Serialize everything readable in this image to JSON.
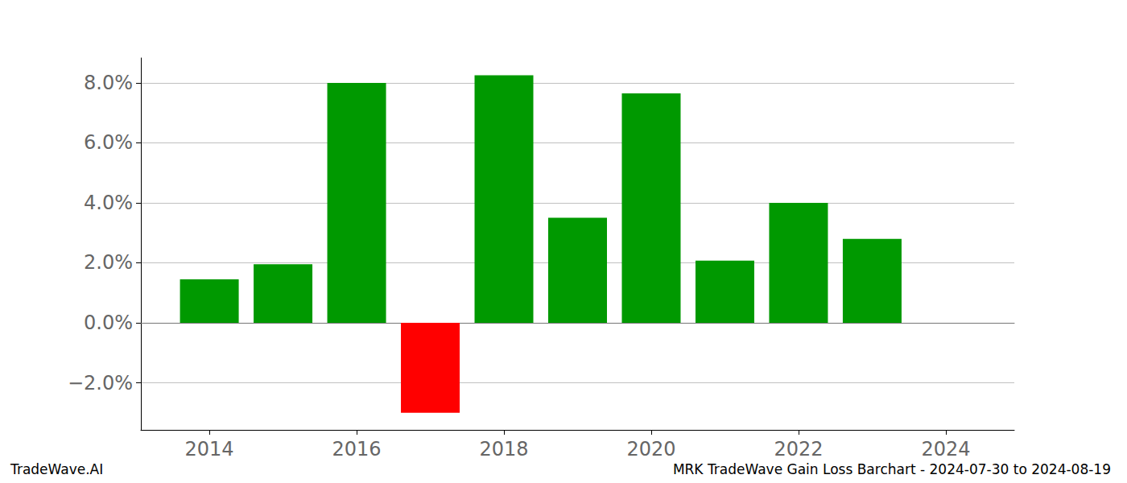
{
  "chart_data": {
    "type": "bar",
    "title": "MRK TradeWave Gain Loss Barchart - 2024-07-30 to 2024-08-19",
    "annotations": [
      "TradeWave.AI"
    ],
    "x": [
      2014,
      2015,
      2016,
      2017,
      2018,
      2019,
      2020,
      2021,
      2022,
      2023
    ],
    "values": [
      1.45,
      1.95,
      8.0,
      -3.0,
      8.25,
      3.5,
      7.65,
      2.07,
      4.0,
      2.8
    ],
    "colors": [
      "#009900",
      "#009900",
      "#009900",
      "#ff0000",
      "#009900",
      "#009900",
      "#009900",
      "#009900",
      "#009900",
      "#009900"
    ],
    "xlim": [
      2013.07,
      2024.93
    ],
    "xticks": [
      2014,
      2016,
      2018,
      2020,
      2022,
      2024
    ],
    "ylim": [
      -3.57,
      8.83
    ],
    "yticks": [
      {
        "value": -2,
        "label": "−2.0%"
      },
      {
        "value": 0,
        "label": "0.0%"
      },
      {
        "value": 2,
        "label": "2.0%"
      },
      {
        "value": 4,
        "label": "4.0%"
      },
      {
        "value": 6,
        "label": "6.0%"
      },
      {
        "value": 8,
        "label": "8.0%"
      }
    ],
    "grid": true
  }
}
